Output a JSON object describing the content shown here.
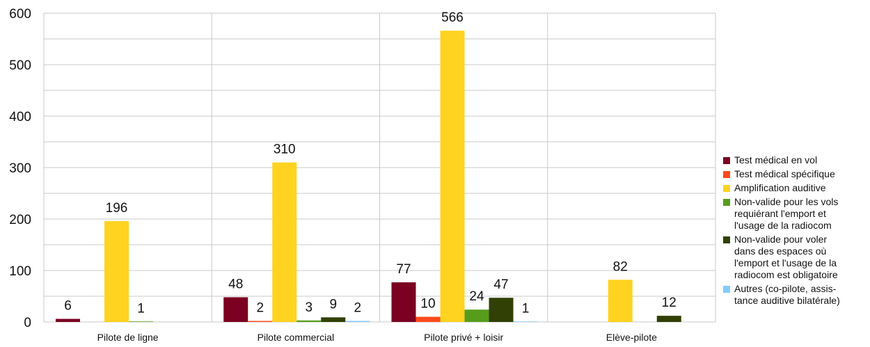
{
  "chart_data": {
    "type": "bar",
    "categories": [
      "Pilote de ligne",
      "Pilote commercial",
      "Pilote privé + loisir",
      "Elève-pilote"
    ],
    "ylim": [
      0,
      600
    ],
    "yticks": [
      0,
      100,
      200,
      300,
      400,
      500,
      600
    ],
    "grid": true,
    "legend_position": "right",
    "series": [
      {
        "name": "Test médical en vol",
        "color": "#7b0022",
        "values": [
          6,
          48,
          77,
          null
        ],
        "labels": [
          "6",
          "48",
          "77",
          ""
        ]
      },
      {
        "name": "Test médical spécifique",
        "color": "#ff4a1b",
        "values": [
          null,
          2,
          10,
          null
        ],
        "labels": [
          "",
          "2",
          "10",
          ""
        ]
      },
      {
        "name": "Amplification auditive",
        "color": "#ffd320",
        "values": [
          196,
          310,
          566,
          82
        ],
        "labels": [
          "196",
          "310",
          "566",
          "82"
        ]
      },
      {
        "name": "Non-valide pour les vols\nrequiérant l'emport et\nl'usage de la radiocom",
        "color": "#579d1c",
        "values": [
          1,
          3,
          24,
          null
        ],
        "labels": [
          "1",
          "3",
          "24",
          ""
        ]
      },
      {
        "name": "Non-valide pour voler\ndans des espaces où\nl'emport et l'usage de la\nradiocom est obligatoire",
        "color": "#314004",
        "values": [
          null,
          9,
          47,
          12
        ],
        "labels": [
          "",
          "9",
          "47",
          "12"
        ]
      },
      {
        "name": "Autres (co-pilote, assis-\ntance auditive bilatérale)",
        "color": "#83caff",
        "values": [
          null,
          2,
          1,
          null
        ],
        "labels": [
          "",
          "2",
          "1",
          ""
        ]
      }
    ]
  }
}
